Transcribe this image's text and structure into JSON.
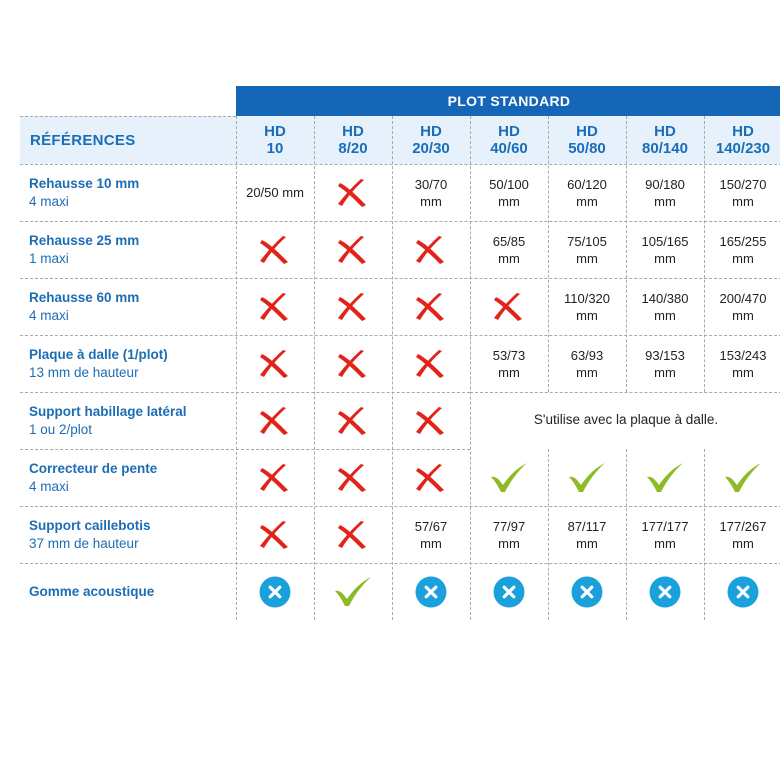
{
  "title": "PLOT STANDARD",
  "references_label": "RÉFÉRENCES",
  "columns": [
    {
      "line1": "HD",
      "line2": "10"
    },
    {
      "line1": "HD",
      "line2": "8/20"
    },
    {
      "line1": "HD",
      "line2": "20/30"
    },
    {
      "line1": "HD",
      "line2": "40/60"
    },
    {
      "line1": "HD",
      "line2": "50/80"
    },
    {
      "line1": "HD",
      "line2": "80/140"
    },
    {
      "line1": "HD",
      "line2": "140/230"
    }
  ],
  "rows": [
    {
      "line1": "Rehausse 10 mm",
      "line2": "4 maxi",
      "cells": [
        {
          "type": "text",
          "line1": "20/50 mm"
        },
        {
          "type": "cross-icon"
        },
        {
          "type": "text",
          "line1": "30/70",
          "line2": "mm"
        },
        {
          "type": "text",
          "line1": "50/100",
          "line2": "mm"
        },
        {
          "type": "text",
          "line1": "60/120",
          "line2": "mm"
        },
        {
          "type": "text",
          "line1": "90/180",
          "line2": "mm"
        },
        {
          "type": "text",
          "line1": "150/270",
          "line2": "mm"
        }
      ]
    },
    {
      "line1": "Rehausse 25 mm",
      "line2": "1 maxi",
      "cells": [
        {
          "type": "cross-icon"
        },
        {
          "type": "cross-icon"
        },
        {
          "type": "cross-icon"
        },
        {
          "type": "text",
          "line1": "65/85",
          "line2": "mm"
        },
        {
          "type": "text",
          "line1": "75/105",
          "line2": "mm"
        },
        {
          "type": "text",
          "line1": "105/165",
          "line2": "mm"
        },
        {
          "type": "text",
          "line1": "165/255",
          "line2": "mm"
        }
      ]
    },
    {
      "line1": "Rehausse 60 mm",
      "line2": "4 maxi",
      "cells": [
        {
          "type": "cross-icon"
        },
        {
          "type": "cross-icon"
        },
        {
          "type": "cross-icon"
        },
        {
          "type": "cross-icon"
        },
        {
          "type": "text",
          "line1": "110/320",
          "line2": "mm"
        },
        {
          "type": "text",
          "line1": "140/380",
          "line2": "mm"
        },
        {
          "type": "text",
          "line1": "200/470",
          "line2": "mm"
        }
      ]
    },
    {
      "line1": "Plaque à dalle (1/plot)",
      "line2": "13 mm de hauteur",
      "cells": [
        {
          "type": "cross-icon"
        },
        {
          "type": "cross-icon"
        },
        {
          "type": "cross-icon"
        },
        {
          "type": "text",
          "line1": "53/73",
          "line2": "mm"
        },
        {
          "type": "text",
          "line1": "63/93",
          "line2": "mm"
        },
        {
          "type": "text",
          "line1": "93/153",
          "line2": "mm"
        },
        {
          "type": "text",
          "line1": "153/243",
          "line2": "mm"
        }
      ]
    },
    {
      "line1": "Support habillage latéral",
      "line2": "1 ou 2/plot",
      "cells": [
        {
          "type": "cross-icon"
        },
        {
          "type": "cross-icon"
        },
        {
          "type": "cross-icon"
        }
      ],
      "merged_note": "S'utilise avec la plaque à dalle."
    },
    {
      "line1": "Correcteur de pente",
      "line2": "4 maxi",
      "cells": [
        {
          "type": "cross-icon"
        },
        {
          "type": "cross-icon"
        },
        {
          "type": "cross-icon"
        },
        {
          "type": "check-icon"
        },
        {
          "type": "check-icon"
        },
        {
          "type": "check-icon"
        },
        {
          "type": "check-icon"
        }
      ]
    },
    {
      "line1": "Support caillebotis",
      "line2": "37 mm de hauteur",
      "cells": [
        {
          "type": "cross-icon"
        },
        {
          "type": "cross-icon"
        },
        {
          "type": "text",
          "line1": "57/67",
          "line2": "mm"
        },
        {
          "type": "text",
          "line1": "77/97",
          "line2": "mm"
        },
        {
          "type": "text",
          "line1": "87/117",
          "line2": "mm"
        },
        {
          "type": "text",
          "line1": "177/177",
          "line2": "mm"
        },
        {
          "type": "text",
          "line1": "177/267",
          "line2": "mm"
        }
      ]
    },
    {
      "line1": "Gomme acoustique",
      "line2": "",
      "cells": [
        {
          "type": "circle-x-icon"
        },
        {
          "type": "check-icon"
        },
        {
          "type": "circle-x-icon"
        },
        {
          "type": "circle-x-icon"
        },
        {
          "type": "circle-x-icon"
        },
        {
          "type": "circle-x-icon"
        },
        {
          "type": "circle-x-icon"
        }
      ]
    }
  ],
  "colors": {
    "title_band": "#1566b7",
    "header_bg": "#e6f1fb",
    "label_text": "#1d6db5",
    "cross": "#e2231a",
    "check": "#8dbb25",
    "circle": "#1aa0dc"
  }
}
